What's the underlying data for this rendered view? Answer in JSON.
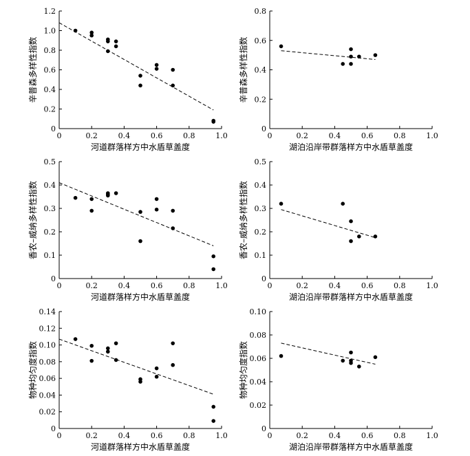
{
  "chart_data": [
    {
      "type": "scatter",
      "xlabel": "河道群落样方中水盾草盖度",
      "ylabel": "辛普森多样性指数",
      "xlim": [
        0,
        1.0
      ],
      "ylim": [
        0,
        1.2
      ],
      "xticks": [
        "0",
        "0.2",
        "0.4",
        "0.6",
        "0.8",
        "1.0"
      ],
      "yticks": [
        "0",
        "0.2",
        "0.4",
        "0.6",
        "0.8",
        "1.0",
        "1.2"
      ],
      "points": [
        [
          0.1,
          1.0
        ],
        [
          0.2,
          0.98
        ],
        [
          0.2,
          0.95
        ],
        [
          0.3,
          0.91
        ],
        [
          0.3,
          0.89
        ],
        [
          0.3,
          0.79
        ],
        [
          0.35,
          0.89
        ],
        [
          0.35,
          0.84
        ],
        [
          0.5,
          0.54
        ],
        [
          0.5,
          0.44
        ],
        [
          0.6,
          0.65
        ],
        [
          0.6,
          0.61
        ],
        [
          0.7,
          0.6
        ],
        [
          0.7,
          0.44
        ],
        [
          0.95,
          0.08
        ],
        [
          0.95,
          0.07
        ]
      ],
      "trendline": [
        [
          0.0,
          1.08
        ],
        [
          0.95,
          0.19
        ]
      ]
    },
    {
      "type": "scatter",
      "xlabel": "湖泊沿岸带群落样方中水盾草盖度",
      "ylabel": "辛普森多样性指数",
      "xlim": [
        0,
        1.0
      ],
      "ylim": [
        0,
        0.8
      ],
      "xticks": [
        "0",
        "0.2",
        "0.4",
        "0.6",
        "0.8",
        "1.0"
      ],
      "yticks": [
        "0",
        "0.2",
        "0.4",
        "0.6",
        "0.8"
      ],
      "points": [
        [
          0.07,
          0.56
        ],
        [
          0.45,
          0.44
        ],
        [
          0.5,
          0.54
        ],
        [
          0.5,
          0.49
        ],
        [
          0.5,
          0.44
        ],
        [
          0.55,
          0.49
        ],
        [
          0.65,
          0.5
        ]
      ],
      "trendline": [
        [
          0.07,
          0.53
        ],
        [
          0.65,
          0.47
        ]
      ]
    },
    {
      "type": "scatter",
      "xlabel": "河道群落样方中水盾草盖度",
      "ylabel": "香农–威纳多样性指数",
      "xlim": [
        0,
        1.0
      ],
      "ylim": [
        0,
        0.5
      ],
      "xticks": [
        "0",
        "0.2",
        "0.4",
        "0.6",
        "0.8",
        "1.0"
      ],
      "yticks": [
        "0",
        "0.1",
        "0.2",
        "0.3",
        "0.4",
        "0.5"
      ],
      "points": [
        [
          0.1,
          0.345
        ],
        [
          0.2,
          0.34
        ],
        [
          0.2,
          0.29
        ],
        [
          0.3,
          0.365
        ],
        [
          0.3,
          0.36
        ],
        [
          0.3,
          0.355
        ],
        [
          0.35,
          0.365
        ],
        [
          0.5,
          0.285
        ],
        [
          0.5,
          0.16
        ],
        [
          0.6,
          0.34
        ],
        [
          0.6,
          0.295
        ],
        [
          0.7,
          0.29
        ],
        [
          0.7,
          0.215
        ],
        [
          0.95,
          0.095
        ],
        [
          0.95,
          0.04
        ]
      ],
      "trendline": [
        [
          0.0,
          0.41
        ],
        [
          0.95,
          0.14
        ]
      ]
    },
    {
      "type": "scatter",
      "xlabel": "湖泊沿岸带群落样方中水盾草盖度",
      "ylabel": "香农–威纳多样性指数",
      "xlim": [
        0,
        1.0
      ],
      "ylim": [
        0,
        0.5
      ],
      "xticks": [
        "0",
        "0.2",
        "0.4",
        "0.6",
        "0.8",
        "1.0"
      ],
      "yticks": [
        "0",
        "0.1",
        "0.2",
        "0.3",
        "0.4",
        "0.5"
      ],
      "points": [
        [
          0.07,
          0.32
        ],
        [
          0.45,
          0.32
        ],
        [
          0.5,
          0.245
        ],
        [
          0.5,
          0.16
        ],
        [
          0.55,
          0.18
        ],
        [
          0.65,
          0.18
        ]
      ],
      "trendline": [
        [
          0.07,
          0.295
        ],
        [
          0.65,
          0.175
        ]
      ]
    },
    {
      "type": "scatter",
      "xlabel": "河道群落样方中水盾草盖度",
      "ylabel": "物种均匀度指数",
      "xlim": [
        0,
        1.0
      ],
      "ylim": [
        0,
        0.14
      ],
      "xticks": [
        "0",
        "0.2",
        "0.4",
        "0.6",
        "0.8",
        "1.0"
      ],
      "yticks": [
        "0",
        "0.02",
        "0.04",
        "0.06",
        "0.08",
        "0.10",
        "0.12",
        "0.14"
      ],
      "points": [
        [
          0.1,
          0.107
        ],
        [
          0.2,
          0.099
        ],
        [
          0.2,
          0.081
        ],
        [
          0.3,
          0.096
        ],
        [
          0.3,
          0.092
        ],
        [
          0.35,
          0.102
        ],
        [
          0.35,
          0.082
        ],
        [
          0.5,
          0.059
        ],
        [
          0.5,
          0.056
        ],
        [
          0.6,
          0.072
        ],
        [
          0.6,
          0.062
        ],
        [
          0.7,
          0.102
        ],
        [
          0.7,
          0.076
        ],
        [
          0.95,
          0.026
        ],
        [
          0.95,
          0.009
        ]
      ],
      "trendline": [
        [
          0.0,
          0.107
        ],
        [
          0.95,
          0.041
        ]
      ]
    },
    {
      "type": "scatter",
      "xlabel": "湖泊沿岸带群落样方中水盾草盖度",
      "ylabel": "物种均匀度指数",
      "xlim": [
        0,
        1.0
      ],
      "ylim": [
        0,
        0.1
      ],
      "xticks": [
        "0",
        "0.2",
        "0.4",
        "0.6",
        "0.8",
        "1.0"
      ],
      "yticks": [
        "0",
        "0.02",
        "0.04",
        "0.06",
        "0.08",
        "0.10"
      ],
      "points": [
        [
          0.07,
          0.062
        ],
        [
          0.45,
          0.058
        ],
        [
          0.5,
          0.065
        ],
        [
          0.5,
          0.058
        ],
        [
          0.5,
          0.056
        ],
        [
          0.55,
          0.053
        ],
        [
          0.65,
          0.061
        ]
      ],
      "trendline": [
        [
          0.07,
          0.073
        ],
        [
          0.65,
          0.055
        ]
      ]
    }
  ]
}
